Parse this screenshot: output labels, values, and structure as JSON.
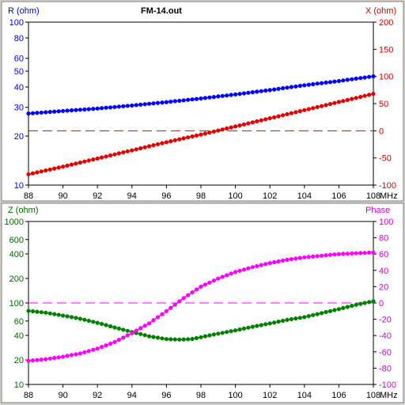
{
  "title": "FM-14.out",
  "x_unit": "MHz",
  "x_ticks": [
    88,
    90,
    92,
    94,
    96,
    98,
    100,
    102,
    104,
    106,
    108
  ],
  "colors": {
    "r": "#0000ff",
    "x": "#e00000",
    "z": "#008000",
    "phase": "#ff00ff"
  },
  "chart_data": [
    {
      "type": "line",
      "title": "FM-14.out",
      "xlim": [
        88,
        108
      ],
      "x_range": [
        88,
        108
      ],
      "point_count": 81,
      "left_axis": {
        "label": "R (ohm)",
        "scale": "log",
        "ylim": [
          10,
          100
        ],
        "ticks": [
          {
            "v": 10,
            "t": "10"
          },
          {
            "v": 20,
            "t": "20"
          },
          {
            "v": 30,
            "t": "30"
          },
          {
            "v": 40,
            "t": "40"
          },
          {
            "v": 50,
            "t": "50"
          },
          {
            "v": 60,
            "t": "60"
          },
          {
            "v": 80,
            "t": "80"
          },
          {
            "v": 100,
            "t": "100"
          }
        ]
      },
      "right_axis": {
        "label": "X (ohm)",
        "scale": "linear",
        "ylim": [
          -100,
          200
        ],
        "ticks": [
          {
            "v": -100,
            "t": "-100"
          },
          {
            "v": -50,
            "t": "-50"
          },
          {
            "v": 0,
            "t": "0"
          },
          {
            "v": 50,
            "t": "50"
          },
          {
            "v": 100,
            "t": "100"
          },
          {
            "v": 150,
            "t": "150"
          },
          {
            "v": 200,
            "t": "200"
          }
        ]
      },
      "reference_line": {
        "axis": "right",
        "value": 0
      },
      "series": [
        {
          "axis": "left",
          "color": "#0000ff",
          "points": [
            [
              88,
              27.5
            ],
            [
              90,
              28.5
            ],
            [
              92,
              29.5
            ],
            [
              94,
              30.8
            ],
            [
              96,
              32.3
            ],
            [
              98,
              34
            ],
            [
              100,
              36
            ],
            [
              102,
              38.3
            ],
            [
              104,
              41
            ],
            [
              106,
              43.5
            ],
            [
              108,
              46.5
            ]
          ]
        },
        {
          "axis": "right",
          "color": "#e00000",
          "points": [
            [
              88,
              -80
            ],
            [
              90,
              -66
            ],
            [
              92,
              -51
            ],
            [
              94,
              -36
            ],
            [
              96,
              -21
            ],
            [
              98,
              -7
            ],
            [
              100,
              8
            ],
            [
              102,
              23
            ],
            [
              104,
              38
            ],
            [
              106,
              53
            ],
            [
              108,
              68
            ]
          ]
        }
      ]
    },
    {
      "type": "line",
      "xlim": [
        88,
        108
      ],
      "x_range": [
        88,
        108
      ],
      "point_count": 81,
      "left_axis": {
        "label": "Z (ohm)",
        "scale": "log",
        "ylim": [
          10,
          1000
        ],
        "ticks": [
          {
            "v": 10,
            "t": "10"
          },
          {
            "v": 20,
            "t": "20"
          },
          {
            "v": 40,
            "t": "40"
          },
          {
            "v": 60,
            "t": "60"
          },
          {
            "v": 100,
            "t": "100"
          },
          {
            "v": 200,
            "t": "200"
          },
          {
            "v": 400,
            "t": "400"
          },
          {
            "v": 600,
            "t": "600"
          },
          {
            "v": 1000,
            "t": "1000"
          }
        ]
      },
      "right_axis": {
        "label": "Phase",
        "scale": "linear",
        "ylim": [
          -100,
          100
        ],
        "ticks": [
          {
            "v": -100,
            "t": "-100"
          },
          {
            "v": -80,
            "t": "-80"
          },
          {
            "v": -60,
            "t": "-60"
          },
          {
            "v": -40,
            "t": "-40"
          },
          {
            "v": -20,
            "t": "-20"
          },
          {
            "v": 0,
            "t": "0"
          },
          {
            "v": 20,
            "t": "20"
          },
          {
            "v": 40,
            "t": "40"
          },
          {
            "v": 60,
            "t": "60"
          },
          {
            "v": 80,
            "t": "80"
          },
          {
            "v": 100,
            "t": "100"
          }
        ]
      },
      "reference_line": {
        "axis": "right",
        "value": 0
      },
      "series": [
        {
          "axis": "left",
          "color": "#008000",
          "points": [
            [
              88,
              80
            ],
            [
              89,
              76
            ],
            [
              90,
              70
            ],
            [
              91,
              64
            ],
            [
              92,
              57
            ],
            [
              93,
              50
            ],
            [
              94,
              44
            ],
            [
              95,
              39
            ],
            [
              96,
              36
            ],
            [
              96.8,
              35.5
            ],
            [
              97.5,
              36.2
            ],
            [
              98,
              38
            ],
            [
              99,
              42
            ],
            [
              100,
              46
            ],
            [
              101,
              51
            ],
            [
              102,
              56
            ],
            [
              103,
              62
            ],
            [
              104,
              67
            ],
            [
              105,
              75
            ],
            [
              106,
              84
            ],
            [
              107,
              95
            ],
            [
              108,
              105
            ]
          ]
        },
        {
          "axis": "right",
          "color": "#ff00ff",
          "points": [
            [
              88,
              -71
            ],
            [
              89,
              -69
            ],
            [
              90,
              -66
            ],
            [
              91,
              -62
            ],
            [
              92,
              -56
            ],
            [
              93,
              -48
            ],
            [
              94,
              -37
            ],
            [
              95,
              -25
            ],
            [
              96,
              -10
            ],
            [
              97,
              6
            ],
            [
              98,
              20
            ],
            [
              99,
              30
            ],
            [
              100,
              38
            ],
            [
              101,
              44
            ],
            [
              102,
              49
            ],
            [
              103,
              53
            ],
            [
              104,
              56
            ],
            [
              105,
              58
            ],
            [
              106,
              60
            ],
            [
              107,
              61
            ],
            [
              108,
              62
            ]
          ]
        }
      ]
    }
  ]
}
